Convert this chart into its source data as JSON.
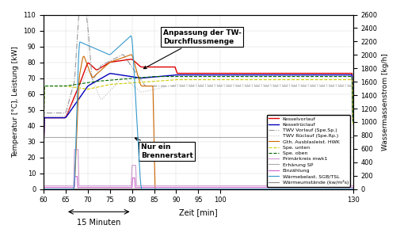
{
  "x_min": 60,
  "x_max": 130,
  "y_left_min": 0,
  "y_left_max": 110,
  "y_right_min": 0,
  "y_right_max": 2600,
  "xlabel": "Zeit [min]",
  "ylabel_left": "Temperatur [°C], Leistung [kW]",
  "ylabel_right": "Wassermassenstrom [kg/h]",
  "y_left_ticks": [
    0,
    10,
    20,
    30,
    40,
    50,
    60,
    70,
    80,
    90,
    100,
    110
  ],
  "y_right_ticks": [
    0,
    200,
    400,
    600,
    800,
    1000,
    1200,
    1400,
    1600,
    1800,
    2000,
    2200,
    2400,
    2600
  ],
  "x_display_ticks": [
    60,
    65,
    70,
    75,
    80,
    85,
    90,
    95,
    100,
    130
  ],
  "annotation1_text": "Anpassung der TW-\nDurchflussmenge",
  "annotation2_text": "Nur ein\nBrennerstart",
  "label_15min": "15 Minuten",
  "bg_color": "#ffffff"
}
